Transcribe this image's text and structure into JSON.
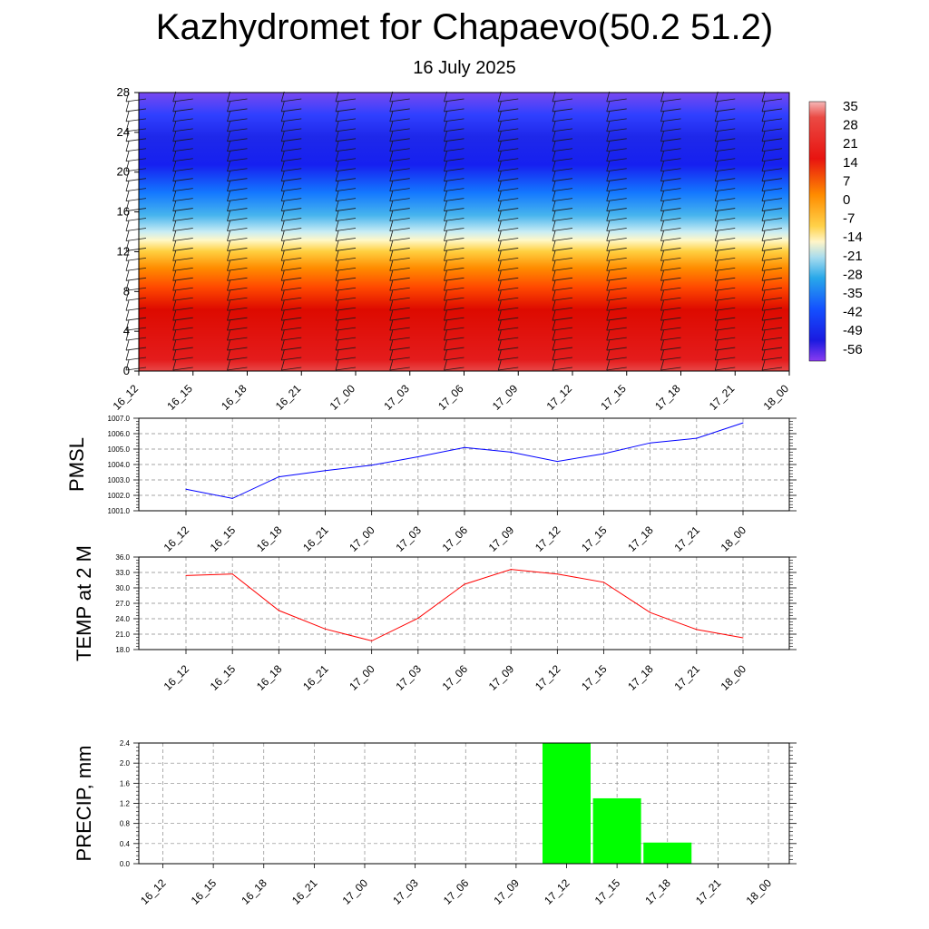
{
  "title": "Kazhydromet for Chapaevo(50.2 51.2)",
  "subtitle": "16 July 2025",
  "colors": {
    "pmsl_line": "#0000ff",
    "temp_line": "#ff0000",
    "precip_bar": "#00ff00"
  },
  "chart_data": [
    {
      "type": "heatmap",
      "name": "upper-air temperature and wind cross-section",
      "x_tick_labels": [
        "16_12",
        "16_15",
        "16_18",
        "16_21",
        "17_00",
        "17_03",
        "17_06",
        "17_09",
        "17_12",
        "17_15",
        "17_18",
        "17_21",
        "18_00"
      ],
      "y_tick_labels": [
        "0",
        "4",
        "8",
        "12",
        "16",
        "20",
        "24",
        "28"
      ],
      "ylim": [
        0,
        28
      ],
      "colorbar_labels": [
        "35",
        "28",
        "21",
        "14",
        "7",
        "0",
        "-7",
        "-14",
        "-21",
        "-28",
        "-35",
        "-42",
        "-49",
        "-56"
      ],
      "colorbar_range": [
        -60,
        38
      ],
      "wind_barbs": true
    },
    {
      "type": "line",
      "ylabel": "PMSL",
      "x_tick_labels": [
        "16_12",
        "16_15",
        "16_18",
        "16_21",
        "17_00",
        "17_03",
        "17_06",
        "17_09",
        "17_12",
        "17_15",
        "17_18",
        "17_21",
        "18_00"
      ],
      "y_tick_labels": [
        "1001.0",
        "1002.0",
        "1003.0",
        "1004.0",
        "1005.0",
        "1006.0",
        "1007.0"
      ],
      "ylim": [
        1001.0,
        1007.0
      ],
      "values": [
        1002.4,
        1001.8,
        1003.2,
        1003.6,
        1003.95,
        1004.5,
        1005.1,
        1004.8,
        1004.2,
        1004.7,
        1005.4,
        1005.7,
        1006.7
      ],
      "grid": true
    },
    {
      "type": "line",
      "ylabel": "TEMP at 2 M",
      "x_tick_labels": [
        "16_12",
        "16_15",
        "16_18",
        "16_21",
        "17_00",
        "17_03",
        "17_06",
        "17_09",
        "17_12",
        "17_15",
        "17_18",
        "17_21",
        "18_00"
      ],
      "y_tick_labels": [
        "18.0",
        "21.0",
        "24.0",
        "27.0",
        "30.0",
        "33.0",
        "36.0"
      ],
      "ylim": [
        18.0,
        36.0
      ],
      "values": [
        32.4,
        32.7,
        25.6,
        22.0,
        19.7,
        24.1,
        30.7,
        33.6,
        32.7,
        31.1,
        25.2,
        21.9,
        20.3
      ],
      "grid": true
    },
    {
      "type": "bar",
      "ylabel": "PRECIP, mm",
      "x_tick_labels": [
        "16_12",
        "16_15",
        "16_18",
        "16_21",
        "17_00",
        "17_03",
        "17_06",
        "17_09",
        "17_12",
        "17_15",
        "17_18",
        "17_21",
        "18_00"
      ],
      "y_tick_labels": [
        "0.0",
        "0.4",
        "0.8",
        "1.2",
        "1.6",
        "2.0",
        "2.4"
      ],
      "ylim": [
        0.0,
        2.4
      ],
      "values": [
        0,
        0,
        0,
        0,
        0,
        0,
        0,
        0,
        2.4,
        1.3,
        0.42,
        0,
        0
      ],
      "grid": true
    }
  ]
}
